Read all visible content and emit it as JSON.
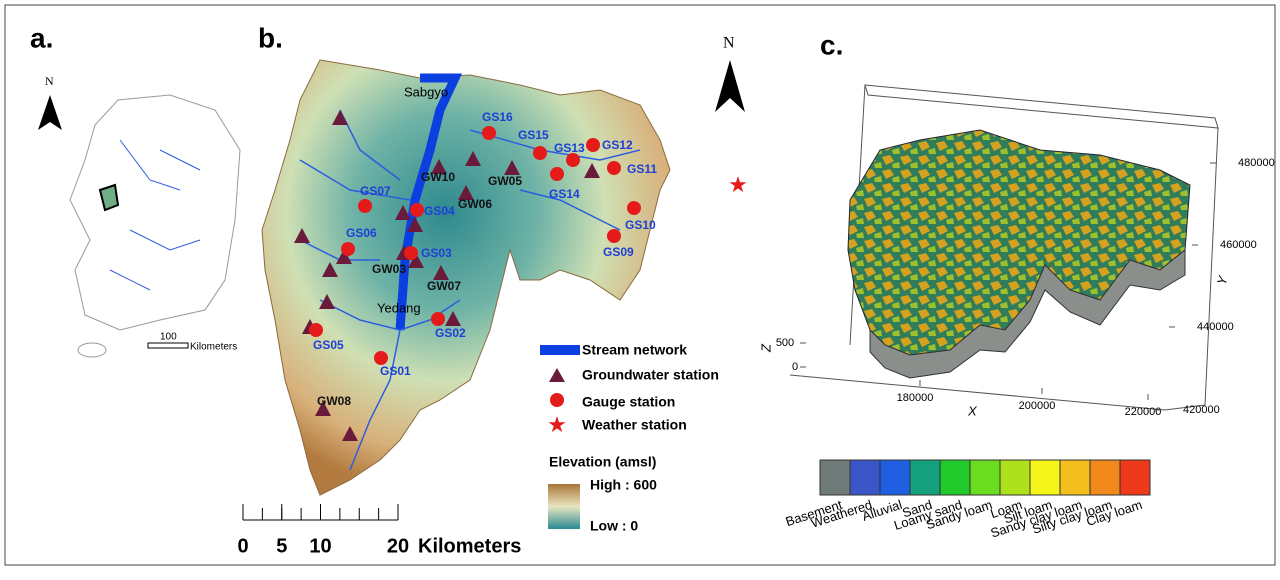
{
  "panels": {
    "a": {
      "label": "a.",
      "north": "N",
      "scale_value": "100",
      "scale_unit": "Kilometers"
    },
    "b": {
      "label": "b.",
      "north": "N",
      "places": [
        "Sabgyo",
        "Yedang"
      ],
      "gauge_stations": [
        "GS01",
        "GS02",
        "GS03",
        "GS04",
        "GS05",
        "GS06",
        "GS07",
        "GS09",
        "GS10",
        "GS11",
        "GS12",
        "GS13",
        "GS14",
        "GS15",
        "GS16"
      ],
      "groundwater_stations": [
        "GW03",
        "GW05",
        "GW06",
        "GW07",
        "GW08",
        "GW10"
      ],
      "legend": {
        "stream": "Stream network",
        "groundwater": "Groundwater station",
        "gauge": "Gauge station",
        "weather": "Weather station"
      },
      "elevation": {
        "title": "Elevation (amsl)",
        "high": "High : 600",
        "low": "Low : 0"
      },
      "scale": {
        "ticks": [
          0,
          5,
          10,
          20
        ],
        "unit": "Kilometers"
      }
    },
    "c": {
      "label": "c.",
      "x_axis": {
        "label": "X",
        "ticks": [
          180000,
          200000,
          220000
        ]
      },
      "y_axis": {
        "label": "Y",
        "ticks": [
          420000,
          440000,
          460000,
          480000
        ]
      },
      "z_axis": {
        "label": "Z",
        "ticks": [
          0,
          500
        ]
      },
      "soil_legend": [
        {
          "name": "Basement",
          "color": "#6e7b78"
        },
        {
          "name": "Weathered",
          "color": "#3a55c8"
        },
        {
          "name": "Alluvial",
          "color": "#1f5ee0"
        },
        {
          "name": "Sand",
          "color": "#15a07e"
        },
        {
          "name": "Loamy sand",
          "color": "#22c92a"
        },
        {
          "name": "Sandy loam",
          "color": "#6bdc1f"
        },
        {
          "name": "Loam",
          "color": "#aee01c"
        },
        {
          "name": "Silt loam",
          "color": "#f5f51a"
        },
        {
          "name": "Sandy clay loam",
          "color": "#f4be1d"
        },
        {
          "name": "Silty clay loam",
          "color": "#f28a1b"
        },
        {
          "name": "Clay loam",
          "color": "#ee3a1b"
        }
      ]
    }
  }
}
